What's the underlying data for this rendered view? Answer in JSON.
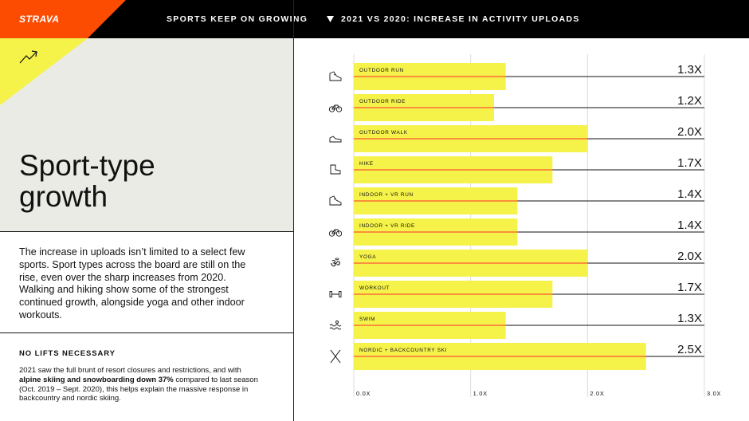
{
  "header": {
    "brand": "STRAVA",
    "left_title": "SPORTS KEEP ON GROWING",
    "right_title": "2021 VS 2020: INCREASE IN ACTIVITY UPLOADS",
    "brand_color": "#fc4c02",
    "accent_color": "#f5f24a"
  },
  "left": {
    "title_line1": "Sport-type",
    "title_line2": "growth",
    "intro": "The increase in uploads isn’t limited to a select few sports. Sport types across the board are still on the rise, even over the sharp increases from 2020. Walking and hiking show some of the strongest continued growth, alongside yoga and other indoor workouts.",
    "sub_heading": "NO LIFTS NECESSARY",
    "sub_text_1": "2021 saw the full brunt of resort closures and restrictions, and with ",
    "sub_text_bold": "alpine skiing and snowboarding down 37%",
    "sub_text_2": " compared to last season (Oct. 2019 – Sept. 2020), this helps explain the massive response in backcountry and nordic skiing."
  },
  "chart_data": {
    "type": "bar",
    "orientation": "horizontal",
    "categories": [
      "OUTDOOR RUN",
      "OUTDOOR RIDE",
      "OUTDOOR WALK",
      "HIKE",
      "INDOOR + VR RUN",
      "INDOOR + VR RIDE",
      "YOGA",
      "WORKOUT",
      "SWIM",
      "NORDIC + BACKCOUNTRY SKI"
    ],
    "values": [
      1.3,
      1.2,
      2.0,
      1.7,
      1.4,
      1.4,
      2.0,
      1.7,
      1.3,
      2.5
    ],
    "value_labels": [
      "1.3X",
      "1.2X",
      "2.0X",
      "1.7X",
      "1.4X",
      "1.4X",
      "2.0X",
      "1.7X",
      "1.3X",
      "2.5X"
    ],
    "icons": [
      "running-shoe-icon",
      "bicycle-icon",
      "walking-shoe-icon",
      "hiking-boot-icon",
      "running-shoe-icon",
      "bicycle-icon",
      "om-icon",
      "dumbbell-icon",
      "waves-icon",
      "ski-icon"
    ],
    "xticks": [
      0,
      1,
      2,
      3
    ],
    "xtick_labels": [
      "0.0X",
      "1.0X",
      "2.0X",
      "3.0X"
    ],
    "xlim": [
      0,
      3
    ],
    "bar_color": "#f5f24a",
    "line_color": "#ff2d2d",
    "grid": true
  }
}
